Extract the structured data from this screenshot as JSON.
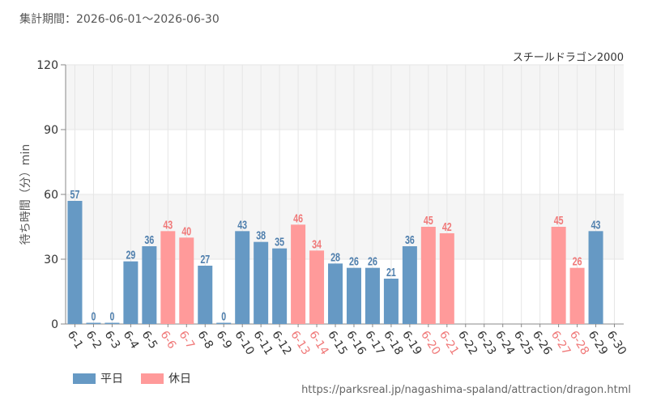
{
  "header": {
    "period_text": "集計期間：2026-06-01～2026-06-30"
  },
  "source_text": "https://parksreal.jp/nagashima-spaland/attraction/dragon.html",
  "colors": {
    "weekday": "#6699c4",
    "holiday": "#ff9a9a",
    "weekday_label": "#4f7fad",
    "holiday_label": "#f07878"
  },
  "chart_data": {
    "type": "bar",
    "title": "スチールドラゴン2000",
    "ylabel": "待ち時間（分）min",
    "xlabel": "",
    "ylim": [
      0,
      120
    ],
    "yticks": [
      0,
      30,
      60,
      90,
      120
    ],
    "grid": true,
    "legend_position": "bottom-left",
    "categories": [
      "6-1",
      "6-2",
      "6-3",
      "6-4",
      "6-5",
      "6-6",
      "6-7",
      "6-8",
      "6-9",
      "6-10",
      "6-11",
      "6-12",
      "6-13",
      "6-14",
      "6-15",
      "6-16",
      "6-17",
      "6-18",
      "6-19",
      "6-20",
      "6-21",
      "6-22",
      "6-23",
      "6-24",
      "6-25",
      "6-26",
      "6-27",
      "6-28",
      "6-29",
      "6-30"
    ],
    "values": [
      57,
      0,
      0,
      29,
      36,
      43,
      40,
      27,
      0,
      43,
      38,
      35,
      46,
      34,
      28,
      26,
      26,
      21,
      36,
      45,
      42,
      null,
      null,
      null,
      null,
      null,
      45,
      26,
      43,
      null
    ],
    "day_type": [
      "weekday",
      "weekday",
      "weekday",
      "weekday",
      "weekday",
      "holiday",
      "holiday",
      "weekday",
      "weekday",
      "weekday",
      "weekday",
      "weekday",
      "holiday",
      "holiday",
      "weekday",
      "weekday",
      "weekday",
      "weekday",
      "weekday",
      "holiday",
      "holiday",
      "weekday",
      "weekday",
      "weekday",
      "weekday",
      "weekday",
      "holiday",
      "holiday",
      "weekday",
      "weekday"
    ],
    "series": [
      {
        "name": "平日",
        "color": "#6699c4"
      },
      {
        "name": "休日",
        "color": "#ff9a9a"
      }
    ]
  }
}
